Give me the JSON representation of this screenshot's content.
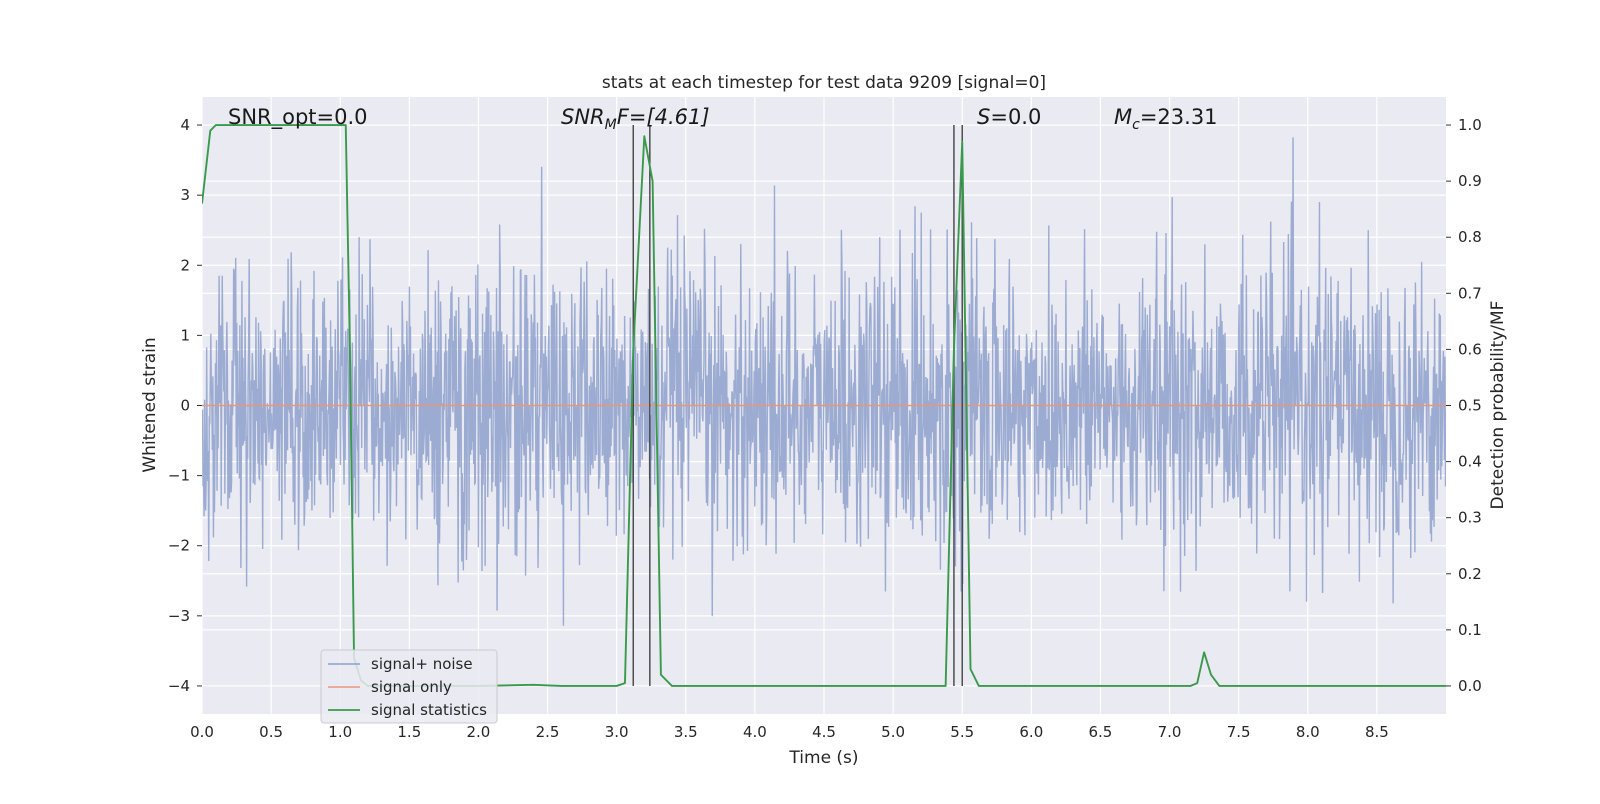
{
  "chart_data": {
    "type": "line",
    "title": "stats at each timestep for test data 9209 [signal=0]",
    "xlabel": "Time (s)",
    "ylabel_left": "Whitened strain",
    "ylabel_right": "Detection probability/MF",
    "xlim": [
      0.0,
      9.0
    ],
    "ylim_left": [
      -4.4,
      4.4
    ],
    "ylim_right": [
      -0.05,
      1.05
    ],
    "x_ticks": [
      "0.0",
      "0.5",
      "1.0",
      "1.5",
      "2.0",
      "2.5",
      "3.0",
      "3.5",
      "4.0",
      "4.5",
      "5.0",
      "5.5",
      "6.0",
      "6.5",
      "7.0",
      "7.5",
      "8.0",
      "8.5"
    ],
    "y_ticks_left": [
      "−4",
      "−3",
      "−2",
      "−1",
      "0",
      "1",
      "2",
      "3",
      "4"
    ],
    "y_ticks_right": [
      "0.0",
      "0.1",
      "0.2",
      "0.3",
      "0.4",
      "0.5",
      "0.6",
      "0.7",
      "0.8",
      "0.9",
      "1.0"
    ],
    "grid": true,
    "legend_position": "lower-left",
    "colors": {
      "plot_bg": "#eaeaf2",
      "grid": "#ffffff",
      "noise": "#8da0cb",
      "signal": "#e8967a",
      "stats": "#3a9a4c",
      "vline": "#444444"
    },
    "annotations": [
      {
        "id": "snr-opt",
        "text": "SNR_opt=0.0"
      },
      {
        "id": "snr-mf",
        "prefix": "SNR",
        "sub": "M",
        "suffix": "F=[4.61]"
      },
      {
        "id": "s-value",
        "prefix": "S",
        "suffix": "=0.0"
      },
      {
        "id": "mc-value",
        "prefix": "M",
        "sub": "c",
        "suffix": "=23.31"
      }
    ],
    "series": [
      {
        "name": "signal+ noise",
        "axis": "left",
        "style": "noise",
        "amplitude_sigma": 1.0
      },
      {
        "name": "signal only",
        "axis": "left",
        "style": "flat",
        "x": [
          0.0,
          9.0
        ],
        "y": [
          0.0,
          0.0
        ]
      },
      {
        "name": "signal statistics",
        "axis": "right",
        "x": [
          0.0,
          0.06,
          0.1,
          0.2,
          0.5,
          0.9,
          1.04,
          1.07,
          1.1,
          1.15,
          1.2,
          1.3,
          1.5,
          2.0,
          2.4,
          2.6,
          3.0,
          3.06,
          3.12,
          3.2,
          3.26,
          3.32,
          3.4,
          3.6,
          4.0,
          5.0,
          5.38,
          5.44,
          5.5,
          5.56,
          5.62,
          6.0,
          7.0,
          7.15,
          7.2,
          7.25,
          7.3,
          7.36,
          7.5,
          8.0,
          9.0
        ],
        "y": [
          0.86,
          0.99,
          1.0,
          1.0,
          1.0,
          1.0,
          1.0,
          0.6,
          0.05,
          0.01,
          0.0,
          0.0,
          0.0,
          0.0,
          0.002,
          0.0,
          0.0,
          0.005,
          0.6,
          0.98,
          0.9,
          0.02,
          0.0,
          0.0,
          0.0,
          0.0,
          0.0,
          0.6,
          0.97,
          0.03,
          0.0,
          0.0,
          0.0,
          0.0,
          0.005,
          0.06,
          0.02,
          0.0,
          0.0,
          0.0,
          0.0
        ]
      },
      {
        "name": "",
        "axis": "right",
        "style": "vlines",
        "x": [
          3.12,
          3.24,
          5.44,
          5.5
        ]
      }
    ]
  }
}
